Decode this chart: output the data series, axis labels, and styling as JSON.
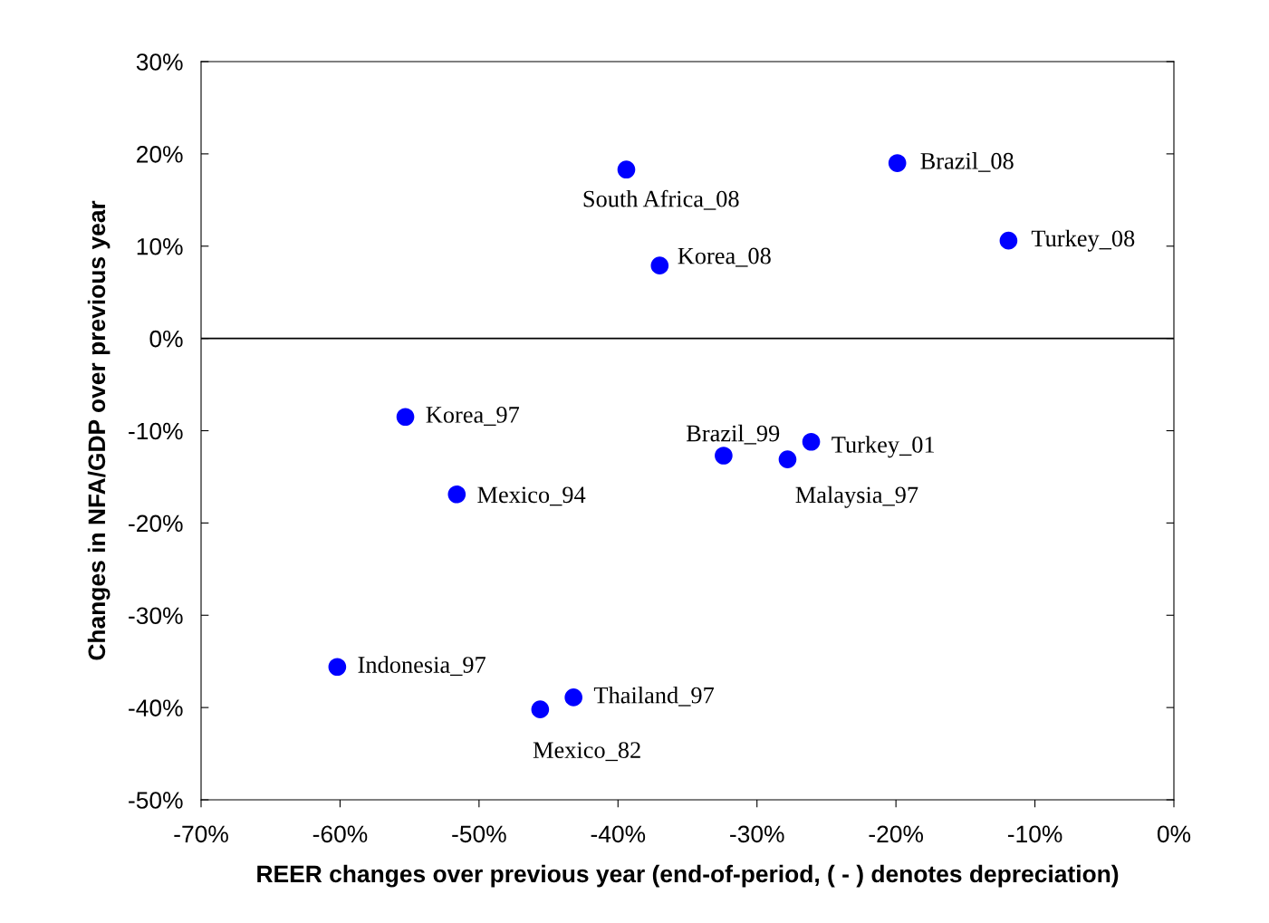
{
  "chart_data": {
    "type": "scatter",
    "xlabel": "REER changes over previous year (end-of-period, ( - ) denotes depreciation)",
    "ylabel": "Changes in NFA/GDP over previous year",
    "x": [
      -39.4,
      -19.9,
      -11.9,
      -37.0,
      -55.3,
      -51.6,
      -32.4,
      -26.1,
      -27.8,
      -60.2,
      -43.2,
      -45.6
    ],
    "series": [
      {
        "color": "#0000ff",
        "values": [
          18.3,
          19.0,
          10.6,
          7.9,
          -8.5,
          -16.9,
          -12.7,
          -11.2,
          -13.1,
          -35.6,
          -38.9,
          -40.2
        ]
      }
    ],
    "marker": "circle",
    "grid": false,
    "legend": false,
    "xlim": [
      -70,
      0
    ],
    "ylim": [
      -50,
      30
    ],
    "xticks": [
      {
        "value": -70,
        "label": "-70%"
      },
      {
        "value": -60,
        "label": "-60%"
      },
      {
        "value": -50,
        "label": "-50%"
      },
      {
        "value": -40,
        "label": "-40%"
      },
      {
        "value": -30,
        "label": "-30%"
      },
      {
        "value": -20,
        "label": "-20%"
      },
      {
        "value": -10,
        "label": "-10%"
      },
      {
        "value": 0,
        "label": "0%"
      }
    ],
    "yticks": [
      {
        "value": -50,
        "label": "-50%"
      },
      {
        "value": -40,
        "label": "-40%"
      },
      {
        "value": -30,
        "label": "-30%"
      },
      {
        "value": -20,
        "label": "-20%"
      },
      {
        "value": -10,
        "label": "-10%"
      },
      {
        "value": 0,
        "label": "0%"
      },
      {
        "value": 10,
        "label": "10%"
      },
      {
        "value": 20,
        "label": "20%"
      },
      {
        "value": 30,
        "label": "30%"
      }
    ],
    "ref_lines": [
      {
        "axis": "y",
        "value": 0,
        "color": "#000000"
      }
    ],
    "annotations": [
      {
        "text": "South Africa_08",
        "x": -39.4,
        "y": 18.3
      },
      {
        "text": "Brazil_08",
        "x": -19.9,
        "y": 19.0
      },
      {
        "text": "Turkey_08",
        "x": -11.9,
        "y": 10.6
      },
      {
        "text": "Korea_08",
        "x": -37.0,
        "y": 7.9
      },
      {
        "text": "Korea_97",
        "x": -55.3,
        "y": -8.5
      },
      {
        "text": "Mexico_94",
        "x": -51.6,
        "y": -16.9
      },
      {
        "text": "Brazil_99",
        "x": -32.4,
        "y": -12.7
      },
      {
        "text": "Turkey_01",
        "x": -26.1,
        "y": -11.2
      },
      {
        "text": "Malaysia_97",
        "x": -27.8,
        "y": -13.1
      },
      {
        "text": "Indonesia_97",
        "x": -60.2,
        "y": -35.6
      },
      {
        "text": "Thailand_97",
        "x": -43.2,
        "y": -38.9
      },
      {
        "text": "Mexico_82",
        "x": -45.6,
        "y": -40.2
      }
    ]
  }
}
